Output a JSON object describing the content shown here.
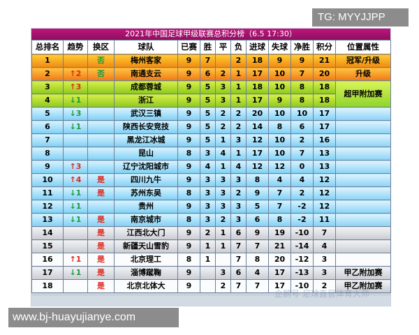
{
  "watermarks": {
    "top": "TG: MYYJJPP",
    "bottom": "www.bj-huayujianye.com",
    "faint": "企鹅号 足球直营体育大师"
  },
  "title": "2021年中国足球甲级联赛总积分榜（6.5 17:30）",
  "headers": [
    "总排名",
    "趋势",
    "换区",
    "球队",
    "已赛",
    "胜",
    "平",
    "负",
    "进球",
    "失球",
    "净胜",
    "积分",
    "位置属性"
  ],
  "rows": [
    {
      "rank": "1",
      "trend": "",
      "zone": "否",
      "team": "梅州客家",
      "played": "9",
      "win": "7",
      "draw": "",
      "loss": "2",
      "gf": "18",
      "ga": "9",
      "gd": "9",
      "pts": "21"
    },
    {
      "rank": "2",
      "trend": "↑2",
      "zone": "否",
      "team": "南通支云",
      "played": "9",
      "win": "6",
      "draw": "2",
      "loss": "1",
      "gf": "17",
      "ga": "10",
      "gd": "7",
      "pts": "20"
    },
    {
      "rank": "3",
      "trend": "↑3",
      "zone": "",
      "team": "成都蓉城",
      "played": "9",
      "win": "5",
      "draw": "3",
      "loss": "1",
      "gf": "18",
      "ga": "10",
      "gd": "8",
      "pts": "18"
    },
    {
      "rank": "4",
      "trend": "↓1",
      "zone": "",
      "team": "浙江",
      "played": "9",
      "win": "5",
      "draw": "3",
      "loss": "1",
      "gf": "17",
      "ga": "9",
      "gd": "8",
      "pts": "18"
    },
    {
      "rank": "5",
      "trend": "↓3",
      "zone": "",
      "team": "武汉三镇",
      "played": "9",
      "win": "5",
      "draw": "2",
      "loss": "2",
      "gf": "20",
      "ga": "10",
      "gd": "10",
      "pts": "17"
    },
    {
      "rank": "6",
      "trend": "↓1",
      "zone": "",
      "team": "陕西长安竞技",
      "played": "9",
      "win": "5",
      "draw": "2",
      "loss": "2",
      "gf": "14",
      "ga": "8",
      "gd": "6",
      "pts": "17"
    },
    {
      "rank": "7",
      "trend": "",
      "zone": "",
      "team": "黑龙江冰城",
      "played": "9",
      "win": "5",
      "draw": "1",
      "loss": "3",
      "gf": "12",
      "ga": "10",
      "gd": "2",
      "pts": "16"
    },
    {
      "rank": "8",
      "trend": "",
      "zone": "",
      "team": "昆山",
      "played": "8",
      "win": "3",
      "draw": "4",
      "loss": "1",
      "gf": "17",
      "ga": "10",
      "gd": "7",
      "pts": "13"
    },
    {
      "rank": "9",
      "trend": "↑3",
      "zone": "",
      "team": "辽宁沈阳城市",
      "played": "9",
      "win": "4",
      "draw": "1",
      "loss": "4",
      "gf": "12",
      "ga": "12",
      "gd": "0",
      "pts": "13"
    },
    {
      "rank": "10",
      "trend": "↑4",
      "zone": "是",
      "team": "四川九牛",
      "played": "9",
      "win": "3",
      "draw": "3",
      "loss": "3",
      "gf": "8",
      "ga": "4",
      "gd": "4",
      "pts": "12"
    },
    {
      "rank": "11",
      "trend": "↓1",
      "zone": "是",
      "team": "苏州东吴",
      "played": "8",
      "win": "3",
      "draw": "3",
      "loss": "2",
      "gf": "9",
      "ga": "7",
      "gd": "2",
      "pts": "12"
    },
    {
      "rank": "12",
      "trend": "↓1",
      "zone": "",
      "team": "贵州",
      "played": "9",
      "win": "3",
      "draw": "3",
      "loss": "3",
      "gf": "5",
      "ga": "7",
      "gd": "-2",
      "pts": "12"
    },
    {
      "rank": "13",
      "trend": "↓1",
      "zone": "是",
      "team": "南京城市",
      "played": "8",
      "win": "3",
      "draw": "2",
      "loss": "3",
      "gf": "6",
      "ga": "8",
      "gd": "-2",
      "pts": "11"
    },
    {
      "rank": "14",
      "trend": "",
      "zone": "是",
      "team": "江西北大门",
      "played": "9",
      "win": "2",
      "draw": "1",
      "loss": "6",
      "gf": "9",
      "ga": "19",
      "gd": "-10",
      "pts": "7"
    },
    {
      "rank": "15",
      "trend": "",
      "zone": "是",
      "team": "新疆天山雪豹",
      "played": "9",
      "win": "1",
      "draw": "1",
      "loss": "7",
      "gf": "7",
      "ga": "21",
      "gd": "-14",
      "pts": "4"
    },
    {
      "rank": "16",
      "trend": "↑1",
      "zone": "是",
      "team": "北京理工",
      "played": "8",
      "win": "1",
      "draw": "",
      "loss": "7",
      "gf": "8",
      "ga": "20",
      "gd": "-12",
      "pts": "3"
    },
    {
      "rank": "17",
      "trend": "↓1",
      "zone": "是",
      "team": "淄博蹴鞠",
      "played": "9",
      "win": "",
      "draw": "3",
      "loss": "6",
      "gf": "4",
      "ga": "17",
      "gd": "-13",
      "pts": "3"
    },
    {
      "rank": "18",
      "trend": "",
      "zone": "是",
      "team": "北京北体大",
      "played": "9",
      "win": "",
      "draw": "2",
      "loss": "7",
      "gf": "7",
      "ga": "17",
      "gd": "-10",
      "pts": "2"
    }
  ],
  "attributes": {
    "r1": "冠军/升级",
    "r2": "升级",
    "super": "超甲附加赛",
    "yi17": "甲乙附加赛",
    "yi18": "甲乙附加赛"
  },
  "colors": {
    "title_bg": "#b0147a",
    "gold": "#f28a10",
    "green": "#8fc81e",
    "blue": "#7fd0f5",
    "gray": "#c9ccd2",
    "up_arrow": "#e0281e",
    "down_arrow": "#1a9a3a"
  }
}
